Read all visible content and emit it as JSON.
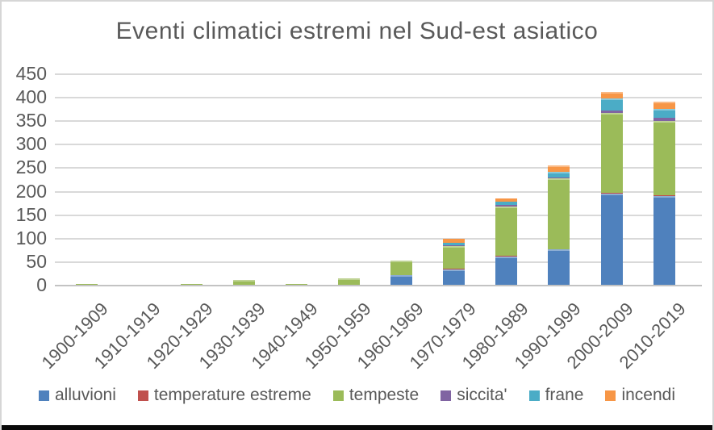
{
  "page": {
    "title": "Eventi climatici estremi nel Sud-est asiatico"
  },
  "colors": {
    "text": "#595959",
    "gridline": "#d9d9d9",
    "axis_line": "#c3c3c3",
    "chart_border": "#d6d6d6",
    "bottom_strip": "#0a0a0a"
  },
  "chart_data": {
    "type": "bar",
    "stacked": true,
    "title": "Eventi climatici estremi nel Sud-est asiatico",
    "xlabel": "",
    "ylabel": "",
    "ylim": [
      0,
      450
    ],
    "y_ticks": [
      "0",
      "50",
      "100",
      "150",
      "200",
      "250",
      "300",
      "350",
      "400",
      "450"
    ],
    "grid": true,
    "legend_position": "bottom",
    "categories": [
      "1900-1909",
      "1910-1919",
      "1920-1929",
      "1930-1939",
      "1940-1949",
      "1950-1959",
      "1960-1969",
      "1970-1979",
      "1980-1989",
      "1990-1999",
      "2000-2009",
      "2010-2019"
    ],
    "series": [
      {
        "name": "alluvioni",
        "color": "#4F81BD",
        "values": [
          0,
          0,
          0,
          0,
          0,
          0,
          22,
          35,
          62,
          77,
          195,
          191
        ]
      },
      {
        "name": "temperature estreme",
        "color": "#C0504D",
        "values": [
          0,
          0,
          0,
          0,
          0,
          0,
          0,
          1,
          1,
          1,
          2,
          2
        ]
      },
      {
        "name": "tempeste",
        "color": "#9BBB59",
        "values": [
          4,
          2,
          4,
          12,
          3,
          15,
          31,
          49,
          105,
          150,
          170,
          158
        ]
      },
      {
        "name": "siccita'",
        "color": "#8064A2",
        "values": [
          0,
          0,
          0,
          0,
          0,
          0,
          0,
          1,
          3,
          3,
          5,
          7
        ]
      },
      {
        "name": "frane",
        "color": "#4BACC6",
        "values": [
          0,
          0,
          0,
          0,
          0,
          0,
          0,
          5,
          7,
          12,
          26,
          19
        ]
      },
      {
        "name": "incendi",
        "color": "#F79646",
        "values": [
          0,
          0,
          0,
          0,
          0,
          0,
          0,
          8,
          8,
          13,
          14,
          14
        ]
      }
    ]
  }
}
